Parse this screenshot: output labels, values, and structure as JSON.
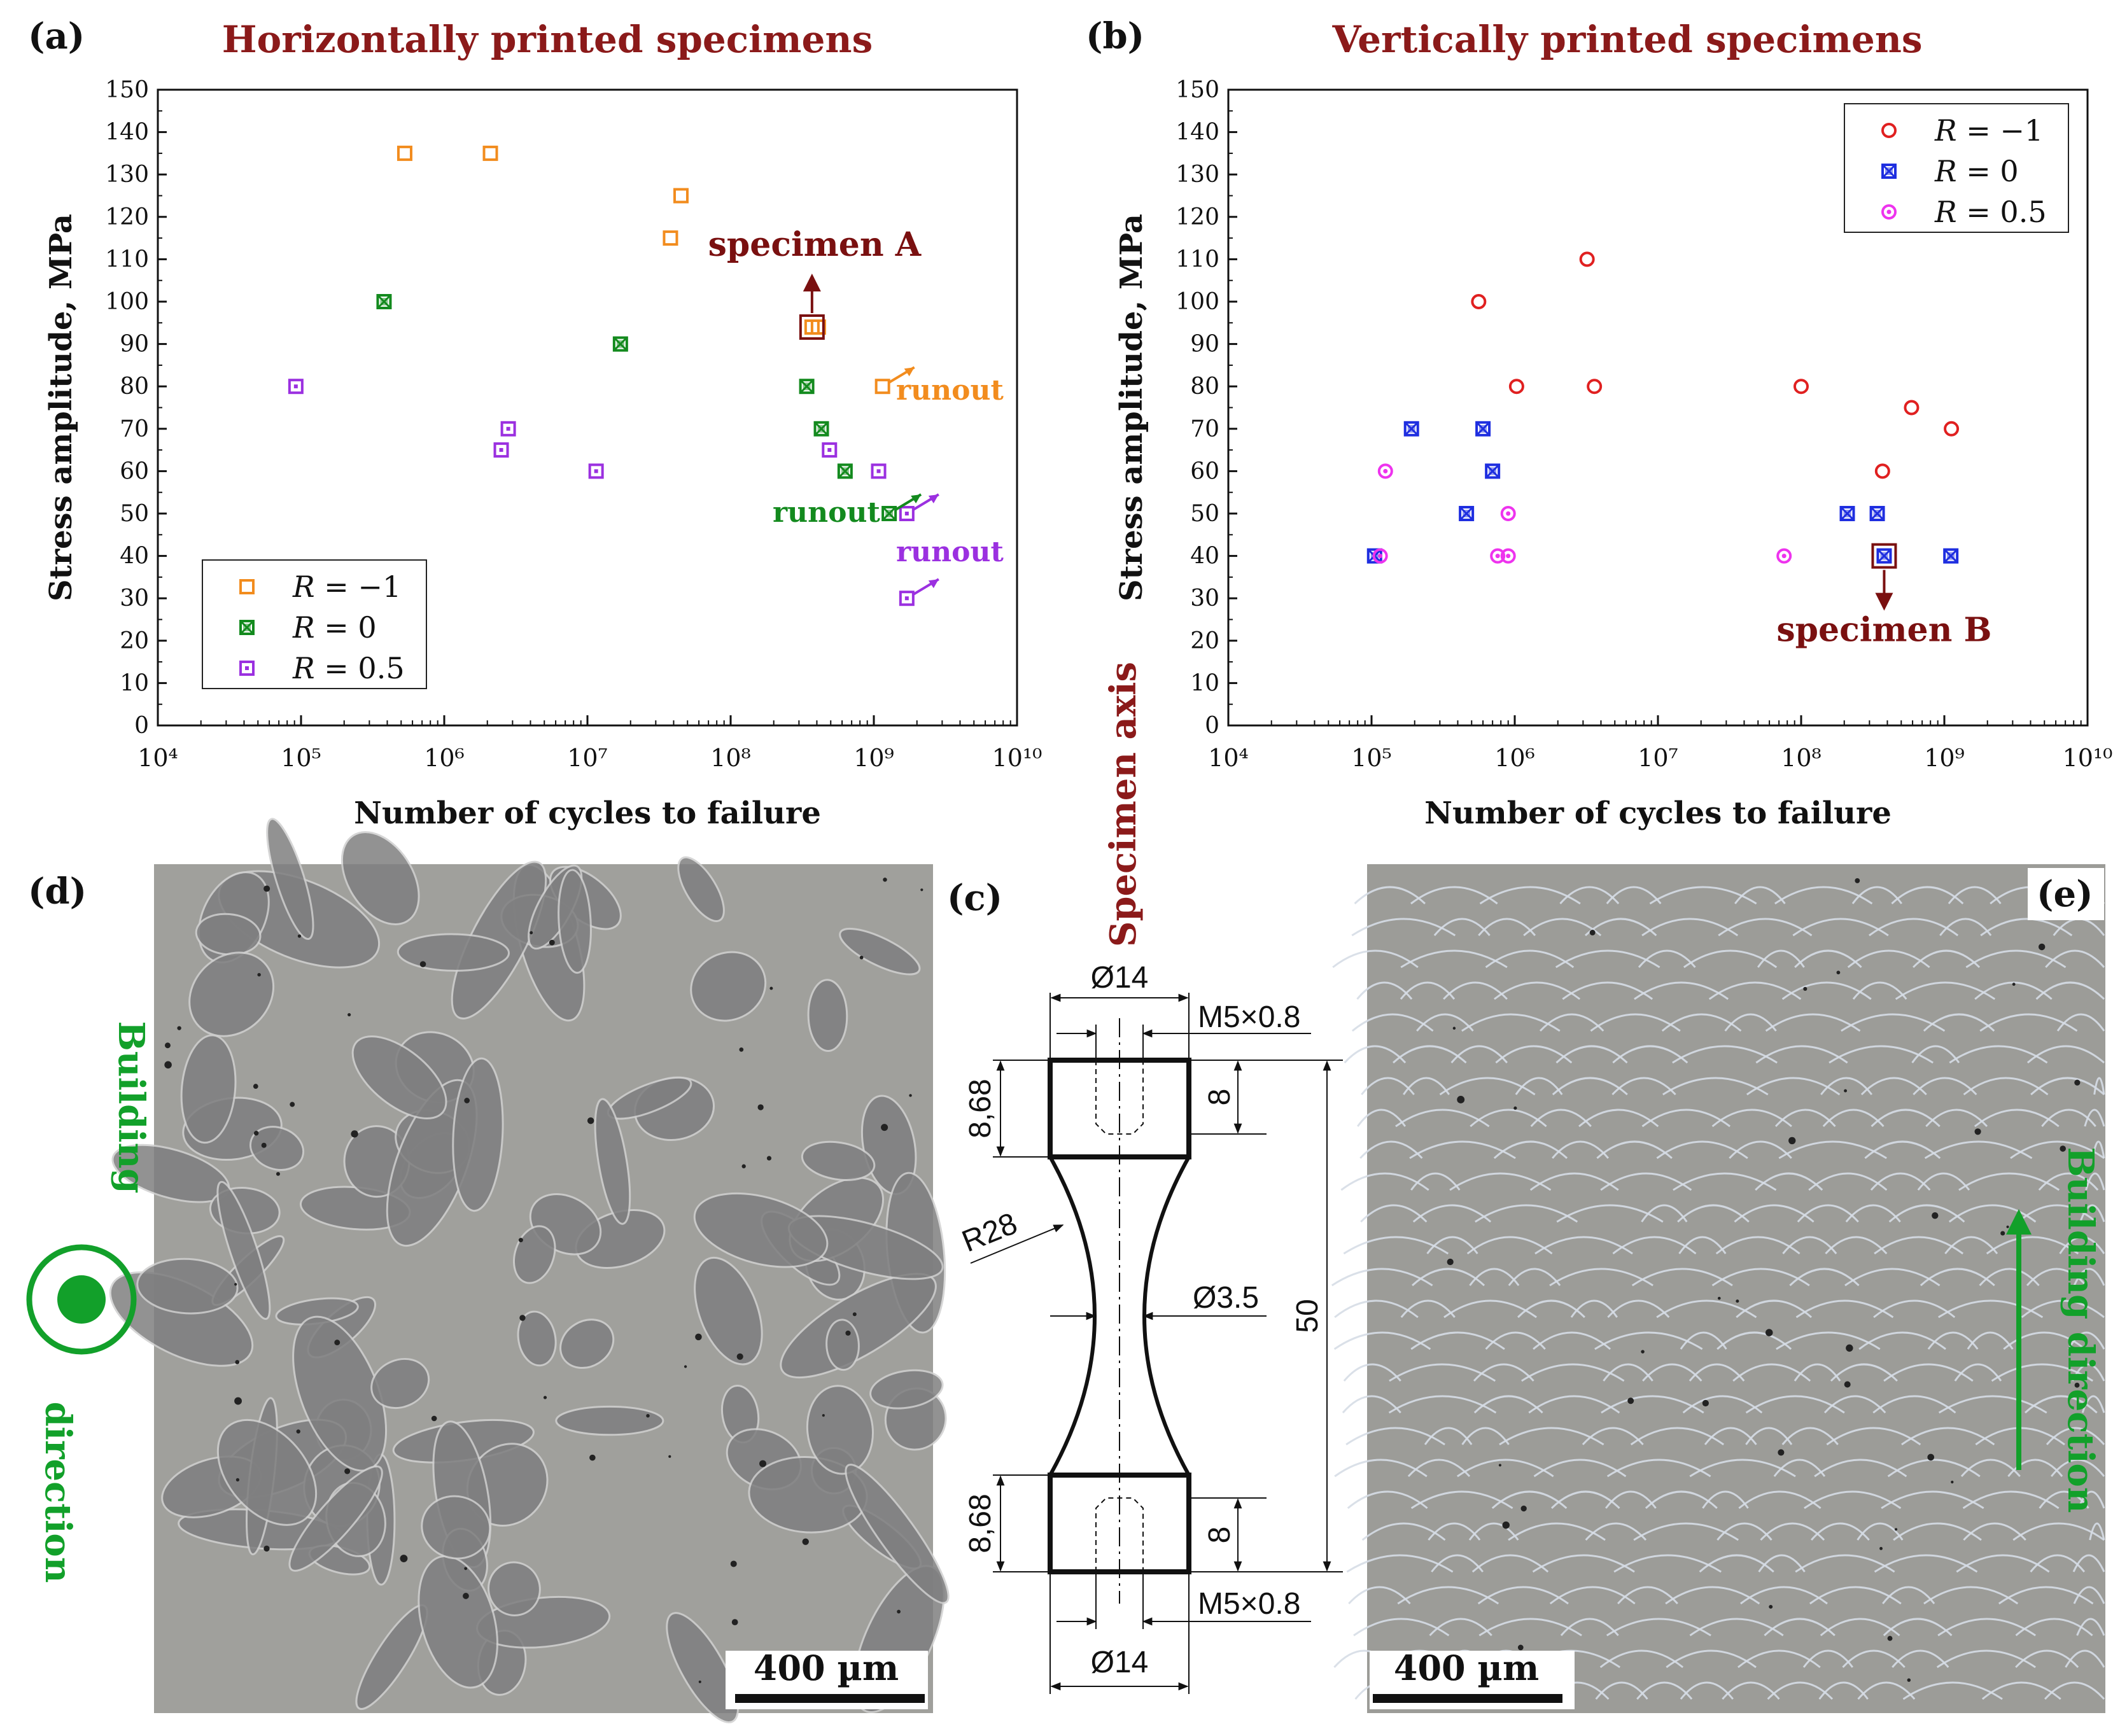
{
  "panels": {
    "a": "(a)",
    "b": "(b)",
    "c": "(c)",
    "d": "(d)",
    "e": "(e)"
  },
  "chart_data": [
    {
      "type": "scatter",
      "title": "Horizontally printed specimens",
      "xlabel": "Number of cycles to failure",
      "ylabel": "Stress amplitude, MPa",
      "xscale": "log",
      "xlim": [
        10000,
        10000000000
      ],
      "ylim": [
        0,
        150
      ],
      "xticks": [
        "10⁴",
        "10⁵",
        "10⁶",
        "10⁷",
        "10⁸",
        "10⁹",
        "10¹⁰"
      ],
      "yticks": [
        0,
        10,
        20,
        30,
        40,
        50,
        60,
        70,
        80,
        90,
        100,
        110,
        120,
        130,
        140,
        150
      ],
      "legend_placement": "bottom-left",
      "legend_prefix": "R",
      "colors": {
        "R=-1": "#f28c1e",
        "R=0": "#138a1e",
        "R=0.5": "#9b30e0",
        "annotation": "#7a1010"
      },
      "series": [
        {
          "name": "= −1",
          "marker": "square-open",
          "color": "#f28c1e",
          "points": [
            [
              530000,
              135
            ],
            [
              2100000,
              135
            ],
            [
              45000000,
              125
            ],
            [
              38000000,
              115
            ],
            [
              370000000,
              94
            ],
            [
              410000000,
              94
            ],
            [
              1150000000,
              80
            ]
          ]
        },
        {
          "name": "= 0",
          "marker": "square-x",
          "color": "#138a1e",
          "points": [
            [
              380000,
              100
            ],
            [
              17000000,
              90
            ],
            [
              340000000,
              80
            ],
            [
              430000000,
              70
            ],
            [
              630000000,
              60
            ],
            [
              1280000000,
              50
            ]
          ]
        },
        {
          "name": "= 0.5",
          "marker": "square-dot",
          "color": "#9b30e0",
          "points": [
            [
              92000,
              80
            ],
            [
              2800000,
              70
            ],
            [
              2500000,
              65
            ],
            [
              11500000,
              60
            ],
            [
              490000000,
              65
            ],
            [
              1080000000,
              60
            ],
            [
              1700000000,
              50
            ],
            [
              1700000000,
              30
            ]
          ]
        }
      ],
      "runouts": [
        {
          "series": 0,
          "x": 1150000000,
          "y": 80,
          "label": "runout",
          "color": "#f28c1e"
        },
        {
          "series": 1,
          "x": 1280000000,
          "y": 50,
          "label": "runout",
          "color": "#138a1e"
        },
        {
          "series": 2,
          "x": 1700000000,
          "y": 50,
          "label": "runout",
          "color": "#9b30e0"
        },
        {
          "series": 2,
          "x": 1700000000,
          "y": 30,
          "label": "",
          "color": "#9b30e0"
        }
      ],
      "annotation": {
        "label": "specimen A",
        "x": 370000000,
        "y": 94
      }
    },
    {
      "type": "scatter",
      "title": "Vertically printed specimens",
      "xlabel": "Number of cycles to failure",
      "ylabel": "Stress amplitude, MPa",
      "xscale": "log",
      "xlim": [
        10000,
        10000000000
      ],
      "ylim": [
        0,
        150
      ],
      "xticks": [
        "10⁴",
        "10⁵",
        "10⁶",
        "10⁷",
        "10⁸",
        "10⁹",
        "10¹⁰"
      ],
      "yticks": [
        0,
        10,
        20,
        30,
        40,
        50,
        60,
        70,
        80,
        90,
        100,
        110,
        120,
        130,
        140,
        150
      ],
      "legend_placement": "top-right",
      "legend_prefix": "R",
      "colors": {
        "R=-1": "#e02020",
        "R=0": "#1e2ee0",
        "R=0.5": "#ee33ee",
        "annotation": "#7a1010"
      },
      "series": [
        {
          "name": "= −1",
          "marker": "circle-open",
          "color": "#e02020",
          "points": [
            [
              560000,
              100
            ],
            [
              1030000,
              80
            ],
            [
              3200000,
              110
            ],
            [
              3600000,
              80
            ],
            [
              100000000,
              80
            ],
            [
              590000000,
              75
            ],
            [
              370000000,
              60
            ],
            [
              1120000000,
              70
            ]
          ]
        },
        {
          "name": "= 0",
          "marker": "square-x",
          "color": "#1e2ee0",
          "points": [
            [
              105000,
              40
            ],
            [
              190000,
              70
            ],
            [
              600000,
              70
            ],
            [
              700000,
              60
            ],
            [
              460000,
              50
            ],
            [
              210000000,
              50
            ],
            [
              340000000,
              50
            ],
            [
              380000000,
              40
            ],
            [
              1110000000,
              40
            ]
          ]
        },
        {
          "name": "= 0.5",
          "marker": "circle-dot",
          "color": "#ee33ee",
          "points": [
            [
              125000,
              60
            ],
            [
              115000,
              40
            ],
            [
              900000,
              50
            ],
            [
              760000,
              40
            ],
            [
              900000,
              40
            ],
            [
              76000000,
              40
            ]
          ]
        }
      ],
      "annotation": {
        "label": "specimen B",
        "x": 380000000,
        "y": 40
      }
    }
  ],
  "drawing": {
    "axis_label": "Specimen axis",
    "dims": {
      "d14_top": "Ø14",
      "thread_top": "M5×0.8",
      "h868_top": "8,68",
      "h8_top": "8",
      "r28": "R28",
      "d35": "Ø3.5",
      "len50": "50",
      "h868_bot": "8,68",
      "h8_bot": "8",
      "thread_bot": "M5×0.8",
      "d14_bot": "Ø14"
    }
  },
  "micrographs": {
    "d_building_top": "Building",
    "d_building_bottom": "direction",
    "d_scale": "400 µm",
    "e_building": "Building direction",
    "e_scale": "400 µm"
  }
}
